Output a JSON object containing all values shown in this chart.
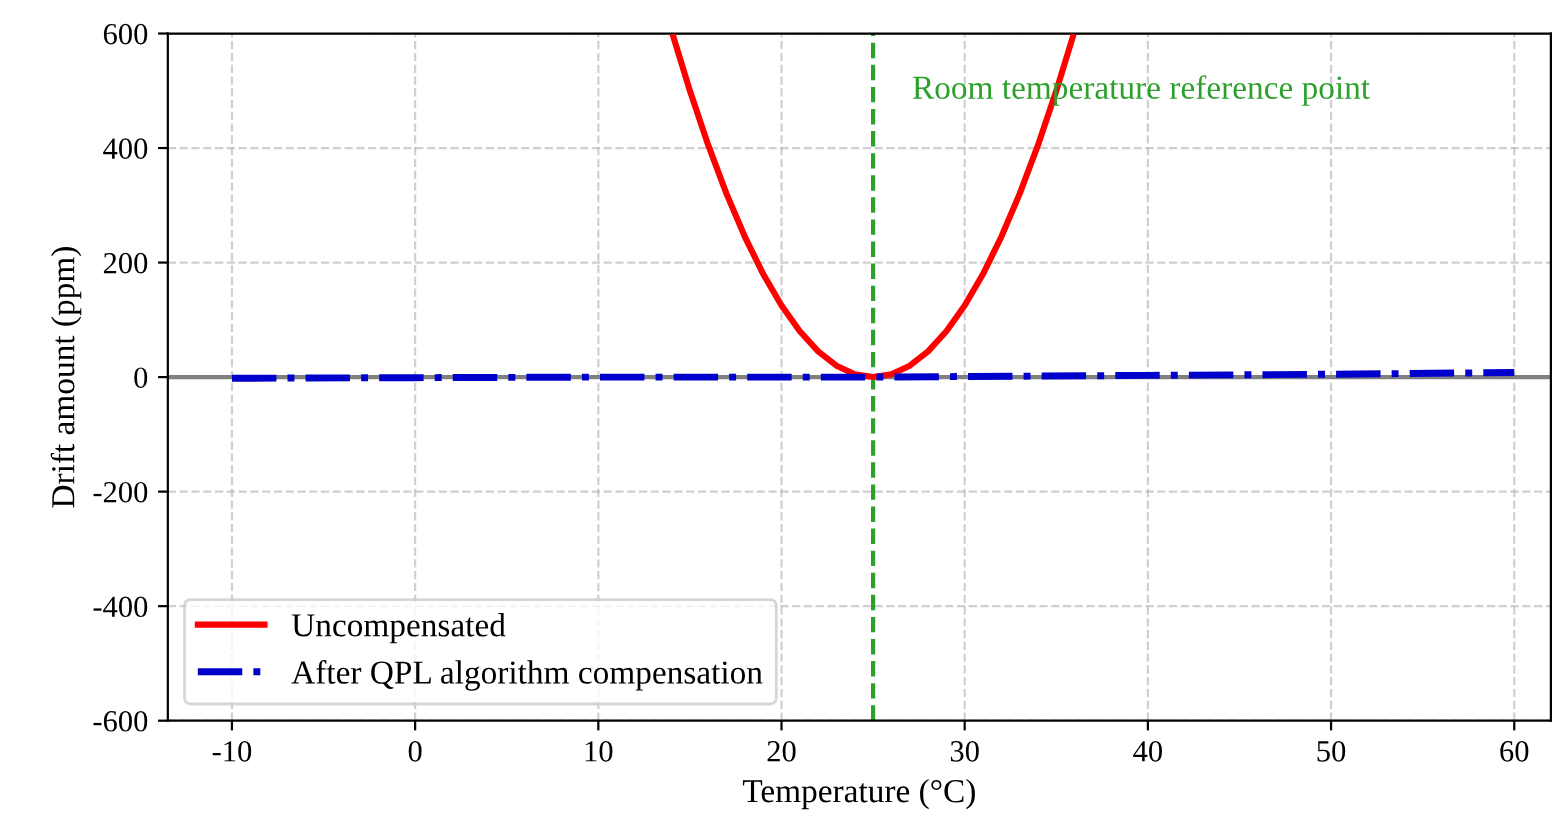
{
  "chart_data": {
    "type": "line",
    "xlabel": "Temperature (°C)",
    "ylabel": "Drift amount (ppm)",
    "xlim": [
      -13.5,
      62
    ],
    "ylim": [
      -600,
      600
    ],
    "xticks": [
      -10,
      0,
      10,
      20,
      30,
      40,
      50,
      60
    ],
    "yticks": [
      -600,
      -400,
      -200,
      0,
      200,
      400,
      600
    ],
    "grid": true,
    "legend": "bottom left",
    "series": [
      {
        "name": "Uncompensated",
        "color": "#ff0000",
        "line_style": "solid",
        "x": [
          14.1,
          15,
          16,
          17,
          18,
          19,
          20,
          21,
          22,
          23,
          24,
          25,
          26,
          27,
          28,
          29,
          30,
          31,
          32,
          33,
          34,
          35,
          35.9
        ],
        "values": [
          594,
          500,
          405,
          320,
          245,
          180,
          125,
          80,
          45,
          20,
          5,
          0,
          5,
          20,
          45,
          80,
          125,
          180,
          245,
          320,
          405,
          500,
          594
        ]
      },
      {
        "name": "After QPL algorithm compensation",
        "color": "#0000cc",
        "line_style": "dashdot",
        "x": [
          -10,
          0,
          10,
          20,
          25,
          30,
          40,
          50,
          60
        ],
        "values": [
          -2,
          -1,
          0,
          0,
          0,
          1,
          3,
          5,
          8
        ]
      }
    ],
    "ref_lines": [
      {
        "axis": "y",
        "value": 0,
        "color": "#808080",
        "line_style": "solid"
      },
      {
        "axis": "x",
        "value": 25,
        "color": "#2ca02c",
        "line_style": "dashed",
        "label": "Room temperature reference point"
      }
    ]
  }
}
